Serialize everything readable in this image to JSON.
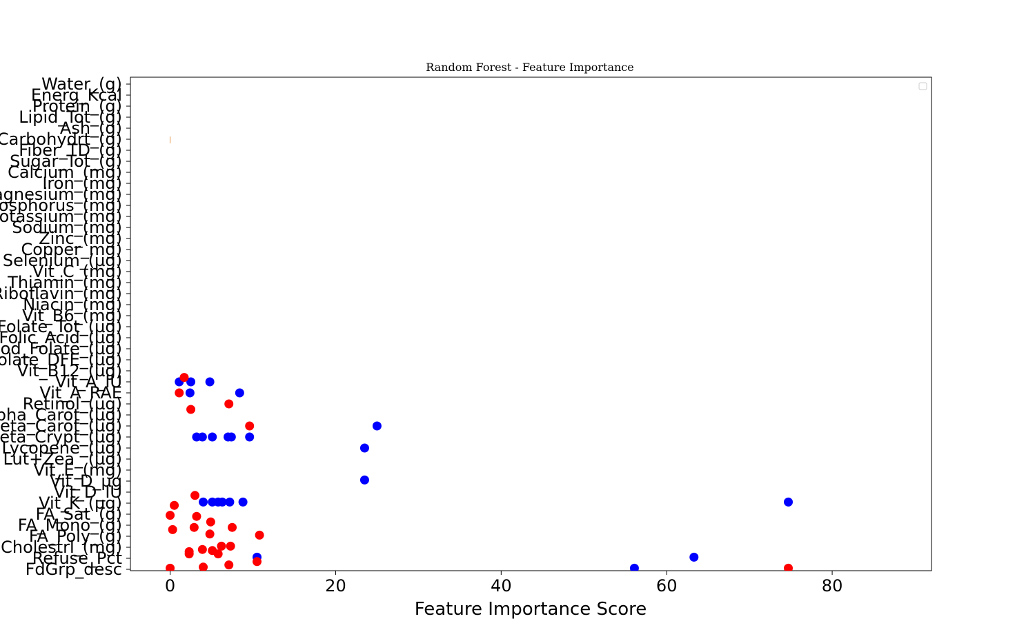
{
  "chart_data": {
    "type": "scatter",
    "title": "Random Forest - Feature Importance",
    "xlabel": "Feature Importance Score",
    "ylabel": "",
    "xlim": [
      -4.8,
      92
    ],
    "xticks": [
      0,
      20,
      40,
      60,
      80
    ],
    "grid": false,
    "legend": "top-right (empty)",
    "features": [
      "Water_(g)",
      "Energ_Kcal",
      "Protein_(g)",
      "Lipid_Tot_(g)",
      "Ash_(g)",
      "Carbohydrt_(g)",
      "Fiber_TD_(g)",
      "Sugar_Tot_(g)",
      "Calcium_(mg)",
      "Iron_(mg)",
      "Magnesium_(mg)",
      "Phosphorus_(mg)",
      "Potassium_(mg)",
      "Sodium_(mg)",
      "Zinc_(mg)",
      "Copper_mg)",
      "Selenium_(µg)",
      "Vit_C_(mg)",
      "Thiamin_(mg)",
      "Riboflavin_(mg)",
      "Niacin_(mg)",
      "Vit_B6_(mg)",
      "Folate_Tot_(µg)",
      "Folic_Acid_(µg)",
      "Food_Folate_(µg)",
      "Folate_DFE_(µg)",
      "Vit_B12_(µg)",
      "Vit_A_IU",
      "Vit_A_RAE",
      "Retinol_(µg)",
      "Alpha_Carot_(µg)",
      "Beta_Carot_(µg)",
      "Beta_Crypt_(µg)",
      "Lycopene_(µg)",
      "Lut+Zea_ (µg)",
      "Vit_E_(mg)",
      "Vit_D_µg",
      "Vit_D_IU",
      "Vit_K_(µg)",
      "FA_Sat_(g)",
      "FA_Mono_(g)",
      "FA_Poly_(g)",
      "Cholestrl_(mg)",
      "Refuse_Pct",
      "FdGrp_desc"
    ],
    "series": [
      {
        "color": "#0000ff",
        "points": [
          {
            "x": 1.1,
            "y": 27.0
          },
          {
            "x": 2.5,
            "y": 27.0
          },
          {
            "x": 4.8,
            "y": 27.0
          },
          {
            "x": 2.4,
            "y": 28.0
          },
          {
            "x": 8.4,
            "y": 28.0
          },
          {
            "x": 25.0,
            "y": 31.0
          },
          {
            "x": 3.2,
            "y": 32.0
          },
          {
            "x": 3.9,
            "y": 32.0
          },
          {
            "x": 5.1,
            "y": 32.0
          },
          {
            "x": 7.0,
            "y": 32.0
          },
          {
            "x": 7.4,
            "y": 32.0
          },
          {
            "x": 9.6,
            "y": 32.0
          },
          {
            "x": 23.5,
            "y": 33.0
          },
          {
            "x": 23.5,
            "y": 35.9
          },
          {
            "x": 4.0,
            "y": 37.9
          },
          {
            "x": 5.1,
            "y": 37.9
          },
          {
            "x": 5.8,
            "y": 37.9
          },
          {
            "x": 6.3,
            "y": 37.9
          },
          {
            "x": 7.2,
            "y": 37.9
          },
          {
            "x": 8.8,
            "y": 37.9
          },
          {
            "x": 74.7,
            "y": 37.9
          },
          {
            "x": 10.5,
            "y": 42.9
          },
          {
            "x": 63.3,
            "y": 42.9
          },
          {
            "x": 56.1,
            "y": 43.9
          },
          {
            "x": 8.7,
            "y": 44.6
          }
        ]
      },
      {
        "color": "#ff0000",
        "points": [
          {
            "x": 1.7,
            "y": 26.6
          },
          {
            "x": 1.1,
            "y": 28.0
          },
          {
            "x": 7.1,
            "y": 29.0
          },
          {
            "x": 2.5,
            "y": 29.5
          },
          {
            "x": 9.6,
            "y": 31.0
          },
          {
            "x": 3.0,
            "y": 37.3
          },
          {
            "x": 0.5,
            "y": 38.2
          },
          {
            "x": 0.0,
            "y": 39.1
          },
          {
            "x": 3.2,
            "y": 39.2
          },
          {
            "x": 4.9,
            "y": 39.7
          },
          {
            "x": 2.9,
            "y": 40.2
          },
          {
            "x": 7.5,
            "y": 40.2
          },
          {
            "x": 0.3,
            "y": 40.4
          },
          {
            "x": 4.8,
            "y": 40.8
          },
          {
            "x": 10.8,
            "y": 40.9
          },
          {
            "x": 6.2,
            "y": 41.9
          },
          {
            "x": 7.3,
            "y": 41.9
          },
          {
            "x": 3.9,
            "y": 42.2
          },
          {
            "x": 5.1,
            "y": 42.3
          },
          {
            "x": 2.3,
            "y": 42.4
          },
          {
            "x": 2.3,
            "y": 42.6
          },
          {
            "x": 5.8,
            "y": 42.6
          },
          {
            "x": 10.5,
            "y": 43.3
          },
          {
            "x": 7.1,
            "y": 43.6
          },
          {
            "x": 4.0,
            "y": 43.8
          },
          {
            "x": 0.0,
            "y": 43.9
          },
          {
            "x": 74.7,
            "y": 43.9
          }
        ]
      }
    ],
    "annotation_marker": {
      "x": 0.0,
      "y": 5.0,
      "color": "#e69a4a"
    }
  }
}
